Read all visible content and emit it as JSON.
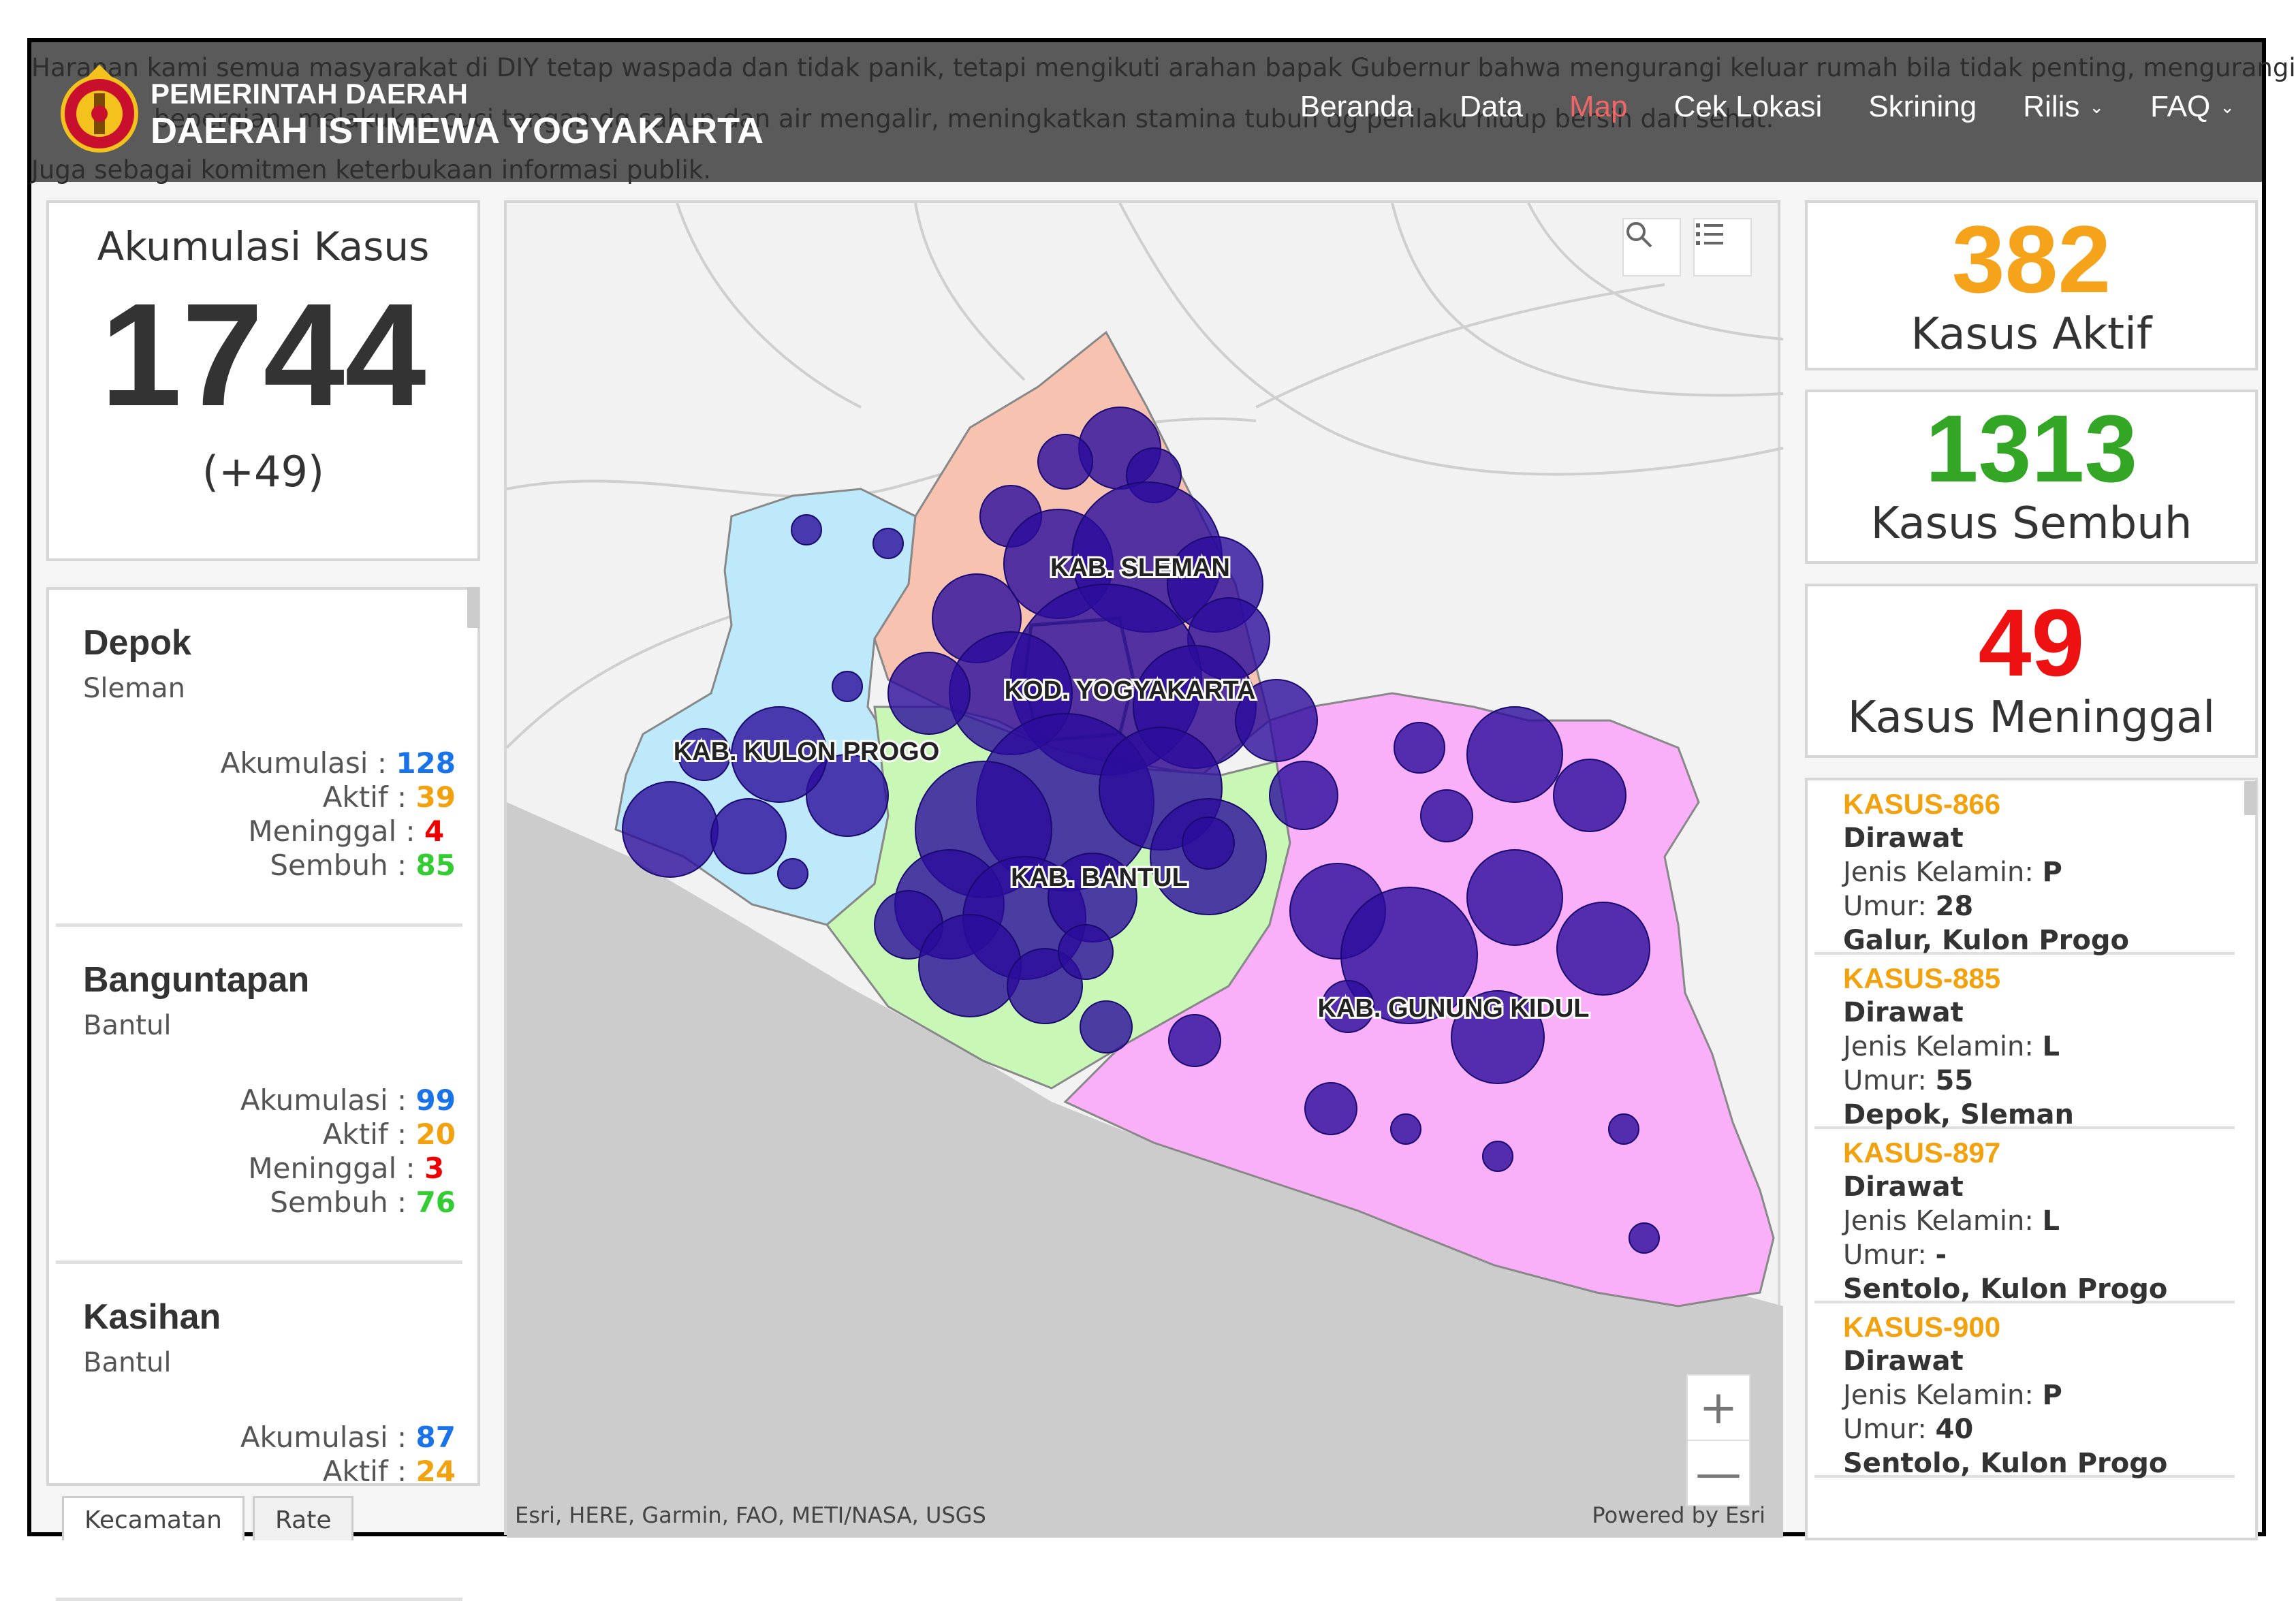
{
  "ticker": {
    "line1": "Harapan kami semua masyarakat di DIY tetap waspada dan tidak panik, tetapi mengikuti arahan bapak Gubernur bahwa mengurangi keluar rumah bila tidak penting, mengurangi",
    "line2": "bepergian, melakukan cuci tangan dg sabun dan air mengalir, meningkatkan stamina tubuh dg perilaku hidup bersih dan sehat.",
    "line3": "Juga sebagai komitmen keterbukaan informasi publik."
  },
  "brand": {
    "line1": "PEMERINTAH DAERAH",
    "line2": "DAERAH ISTIMEWA YOGYAKARTA"
  },
  "nav": [
    "Beranda",
    "Data",
    "Map",
    "Cek Lokasi",
    "Skrining",
    "Rilis",
    "FAQ"
  ],
  "summary": {
    "title": "Akumulasi Kasus",
    "total": "1744",
    "delta": "(+49)"
  },
  "stat_labels": {
    "akumulasi": "Akumulasi :",
    "aktif": "Aktif :",
    "meninggal": "Meninggal :",
    "sembuh": "Sembuh :"
  },
  "kecamatan": [
    {
      "name": "Depok",
      "kab": "Sleman",
      "akumulasi": "128",
      "aktif": "39",
      "meninggal": "4",
      "sembuh": "85"
    },
    {
      "name": "Banguntapan",
      "kab": "Bantul",
      "akumulasi": "99",
      "aktif": "20",
      "meninggal": "3",
      "sembuh": "76"
    },
    {
      "name": "Kasihan",
      "kab": "Bantul",
      "akumulasi": "87",
      "aktif": "24",
      "meninggal": "",
      "sembuh": ""
    }
  ],
  "tabs": [
    "Kecamatan",
    "Rate"
  ],
  "map": {
    "labels": [
      "KAB. SLEMAN",
      "KOD. YOGYAKARTA",
      "KAB. KULON PROGO",
      "KAB. BANTUL",
      "KAB. GUNUNG KIDUL"
    ],
    "attribution": "Esri, HERE, Garmin, FAO, METI/NASA, USGS",
    "powered": "Powered by Esri",
    "zoom_in": "+",
    "zoom_out": "—"
  },
  "stats": {
    "aktif": {
      "value": "382",
      "label": "Kasus Aktif",
      "color": "#f5a31a"
    },
    "sembuh": {
      "value": "1313",
      "label": "Kasus Sembuh",
      "color": "#33a626"
    },
    "meninggal": {
      "value": "49",
      "label": "Kasus Meninggal",
      "color": "#ee1111"
    }
  },
  "cases": [
    {
      "id": "KASUS-866",
      "status": "Dirawat",
      "jk_label": "Jenis Kelamin:",
      "jk": "P",
      "umur_label": "Umur:",
      "umur": "28",
      "loc": "Galur, Kulon Progo"
    },
    {
      "id": "KASUS-885",
      "status": "Dirawat",
      "jk_label": "Jenis Kelamin:",
      "jk": "L",
      "umur_label": "Umur:",
      "umur": "55",
      "loc": "Depok, Sleman"
    },
    {
      "id": "KASUS-897",
      "status": "Dirawat",
      "jk_label": "Jenis Kelamin:",
      "jk": "L",
      "umur_label": "Umur:",
      "umur": "-",
      "loc": "Sentolo, Kulon Progo"
    },
    {
      "id": "KASUS-900",
      "status": "Dirawat",
      "jk_label": "Jenis Kelamin:",
      "jk": "P",
      "umur_label": "Umur:",
      "umur": "40",
      "loc": "Sentolo, Kulon Progo"
    }
  ],
  "icons": {
    "search": "search-icon",
    "list": "list-icon",
    "logo": "emblem-icon"
  },
  "colors": {
    "kulon_progo": "#bde9fb",
    "sleman": "#f7c2b0",
    "bantul": "#c9f7b6",
    "gunung_kidul": "#f9b0f9",
    "bubble": "#2a0d9c"
  }
}
